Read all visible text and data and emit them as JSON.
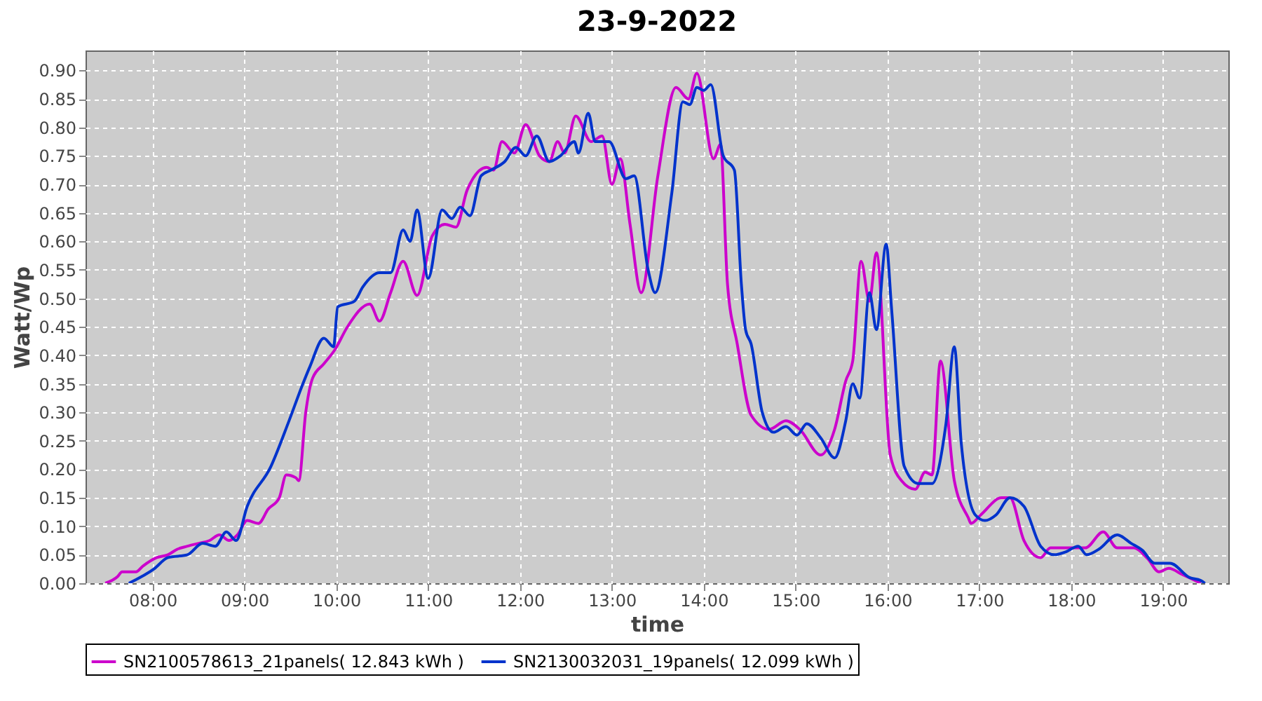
{
  "chart_data": {
    "type": "line",
    "title": "23-9-2022",
    "xlabel": "time",
    "ylabel": "Watt/Wp",
    "grid": true,
    "legend": "bottom",
    "xlim": [
      7.27,
      19.71
    ],
    "ylim": [
      0,
      0.935
    ],
    "xticks": [
      {
        "value": 8,
        "label": "08:00"
      },
      {
        "value": 9,
        "label": "09:00"
      },
      {
        "value": 10,
        "label": "10:00"
      },
      {
        "value": 11,
        "label": "11:00"
      },
      {
        "value": 12,
        "label": "12:00"
      },
      {
        "value": 13,
        "label": "13:00"
      },
      {
        "value": 14,
        "label": "14:00"
      },
      {
        "value": 15,
        "label": "15:00"
      },
      {
        "value": 16,
        "label": "16:00"
      },
      {
        "value": 17,
        "label": "17:00"
      },
      {
        "value": 18,
        "label": "18:00"
      },
      {
        "value": 19,
        "label": "19:00"
      }
    ],
    "yticks": [
      {
        "value": 0,
        "label": "0.00"
      },
      {
        "value": 0.05,
        "label": "0.05"
      },
      {
        "value": 0.1,
        "label": "0.10"
      },
      {
        "value": 0.15,
        "label": "0.15"
      },
      {
        "value": 0.2,
        "label": "0.20"
      },
      {
        "value": 0.25,
        "label": "0.25"
      },
      {
        "value": 0.3,
        "label": "0.30"
      },
      {
        "value": 0.35,
        "label": "0.35"
      },
      {
        "value": 0.4,
        "label": "0.40"
      },
      {
        "value": 0.45,
        "label": "0.45"
      },
      {
        "value": 0.5,
        "label": "0.50"
      },
      {
        "value": 0.55,
        "label": "0.55"
      },
      {
        "value": 0.6,
        "label": "0.60"
      },
      {
        "value": 0.65,
        "label": "0.65"
      },
      {
        "value": 0.7,
        "label": "0.70"
      },
      {
        "value": 0.75,
        "label": "0.75"
      },
      {
        "value": 0.8,
        "label": "0.80"
      },
      {
        "value": 0.85,
        "label": "0.85"
      },
      {
        "value": 0.9,
        "label": "0.90"
      }
    ],
    "series": [
      {
        "name": "SN2100578613_21panels( 12.843 kWh )",
        "color": "#cc00cc",
        "x": [
          7.485,
          7.621,
          7.667,
          7.818,
          7.894,
          8.045,
          8.167,
          8.273,
          8.379,
          8.5,
          8.621,
          8.727,
          8.833,
          8.924,
          9.03,
          9.152,
          9.258,
          9.379,
          9.455,
          9.561,
          9.591,
          9.667,
          9.742,
          9.864,
          9.985,
          10.121,
          10.364,
          10.47,
          10.591,
          10.727,
          10.879,
          11.045,
          11.182,
          11.303,
          11.424,
          11.636,
          11.712,
          11.803,
          11.939,
          12.061,
          12.212,
          12.318,
          12.409,
          12.485,
          12.606,
          12.773,
          12.894,
          13.0,
          13.091,
          13.197,
          13.318,
          13.5,
          13.697,
          13.833,
          13.924,
          14.106,
          14.182,
          14.258,
          14.364,
          14.515,
          14.712,
          14.894,
          15.045,
          15.273,
          15.424,
          15.545,
          15.621,
          15.712,
          15.803,
          15.879,
          16.03,
          16.152,
          16.303,
          16.409,
          16.485,
          16.576,
          16.727,
          16.879,
          16.909,
          17.015,
          17.242,
          17.333,
          17.485,
          17.667,
          17.773,
          18.152,
          18.348,
          18.5,
          18.682,
          18.833,
          18.955,
          19.061,
          19.212,
          19.409
        ],
        "values": [
          0,
          0.012,
          0.02,
          0.02,
          0.03,
          0.045,
          0.05,
          0.06,
          0.065,
          0.07,
          0.075,
          0.085,
          0.075,
          0.085,
          0.11,
          0.105,
          0.13,
          0.15,
          0.19,
          0.185,
          0.18,
          0.3,
          0.36,
          0.385,
          0.41,
          0.45,
          0.49,
          0.46,
          0.51,
          0.565,
          0.505,
          0.61,
          0.63,
          0.625,
          0.69,
          0.73,
          0.725,
          0.775,
          0.755,
          0.805,
          0.75,
          0.74,
          0.775,
          0.755,
          0.82,
          0.775,
          0.785,
          0.7,
          0.745,
          0.63,
          0.51,
          0.715,
          0.87,
          0.85,
          0.895,
          0.745,
          0.77,
          0.525,
          0.42,
          0.295,
          0.27,
          0.285,
          0.27,
          0.225,
          0.27,
          0.355,
          0.39,
          0.565,
          0.495,
          0.58,
          0.225,
          0.18,
          0.165,
          0.195,
          0.19,
          0.39,
          0.18,
          0.115,
          0.105,
          0.12,
          0.15,
          0.15,
          0.075,
          0.045,
          0.062,
          0.062,
          0.09,
          0.062,
          0.062,
          0.043,
          0.02,
          0.026,
          0.015,
          0
        ]
      },
      {
        "name": "SN2130032031_19panels( 12.099 kWh )",
        "color": "#0033cc",
        "x": [
          7.742,
          8.015,
          8.167,
          8.379,
          8.545,
          8.682,
          8.803,
          8.909,
          9.03,
          9.288,
          9.485,
          9.636,
          9.712,
          9.864,
          9.97,
          10.015,
          10.197,
          10.288,
          10.47,
          10.591,
          10.727,
          10.803,
          10.879,
          11.0,
          11.152,
          11.258,
          11.348,
          11.455,
          11.576,
          11.682,
          11.833,
          11.955,
          12.061,
          12.182,
          12.318,
          12.439,
          12.591,
          12.636,
          12.742,
          12.818,
          12.97,
          13.152,
          13.242,
          13.394,
          13.47,
          13.652,
          13.773,
          13.848,
          13.924,
          14.0,
          14.076,
          14.212,
          14.333,
          14.409,
          14.455,
          14.515,
          14.636,
          14.758,
          14.894,
          15.015,
          15.121,
          15.273,
          15.424,
          15.545,
          15.621,
          15.697,
          15.803,
          15.879,
          15.985,
          16.045,
          16.182,
          16.333,
          16.485,
          16.636,
          16.727,
          16.803,
          16.955,
          17.061,
          17.182,
          17.333,
          17.485,
          17.667,
          17.818,
          17.939,
          18.076,
          18.167,
          18.303,
          18.5,
          18.652,
          18.773,
          18.909,
          19.076,
          19.288,
          19.409,
          19.455
        ],
        "values": [
          0,
          0.025,
          0.045,
          0.05,
          0.07,
          0.065,
          0.09,
          0.075,
          0.135,
          0.205,
          0.285,
          0.35,
          0.38,
          0.43,
          0.415,
          0.485,
          0.495,
          0.52,
          0.545,
          0.545,
          0.62,
          0.6,
          0.655,
          0.535,
          0.655,
          0.64,
          0.66,
          0.645,
          0.715,
          0.725,
          0.74,
          0.765,
          0.75,
          0.785,
          0.74,
          0.75,
          0.775,
          0.755,
          0.825,
          0.775,
          0.775,
          0.71,
          0.715,
          0.55,
          0.51,
          0.685,
          0.845,
          0.84,
          0.87,
          0.865,
          0.875,
          0.75,
          0.725,
          0.525,
          0.445,
          0.42,
          0.3,
          0.265,
          0.275,
          0.26,
          0.28,
          0.255,
          0.22,
          0.285,
          0.35,
          0.325,
          0.51,
          0.445,
          0.595,
          0.48,
          0.205,
          0.175,
          0.175,
          0.28,
          0.415,
          0.245,
          0.12,
          0.11,
          0.12,
          0.15,
          0.135,
          0.065,
          0.05,
          0.055,
          0.065,
          0.05,
          0.06,
          0.085,
          0.07,
          0.058,
          0.035,
          0.035,
          0.01,
          0.005,
          0
        ]
      }
    ]
  }
}
